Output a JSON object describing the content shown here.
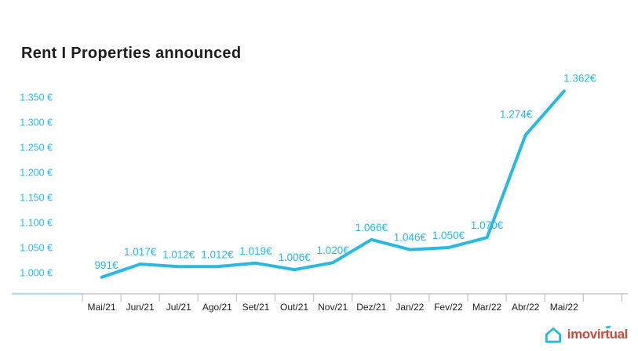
{
  "page": {
    "title": "Rent I Properties announced",
    "background": "#ffffff"
  },
  "chart_data": {
    "type": "line",
    "title": "Rent I Properties announced",
    "categories": [
      "Mai/21",
      "Jun/21",
      "Jul/21",
      "Ago/21",
      "Set/21",
      "Out/21",
      "Nov/21",
      "Dez/21",
      "Jan/22",
      "Fev/22",
      "Mar/22",
      "Abr/22",
      "Mai/22"
    ],
    "values": [
      991,
      1017,
      1012,
      1012,
      1019,
      1006,
      1020,
      1066,
      1046,
      1050,
      1070,
      1274,
      1362
    ],
    "point_labels": [
      "991€",
      "1.017€",
      "1.012€",
      "1.012€",
      "1.019€",
      "1.006€",
      "1.020€",
      "1.066€",
      "1.046€",
      "1.050€",
      "1.070€",
      "1.274€",
      "1.362€"
    ],
    "y_ticks": [
      1000,
      1050,
      1100,
      1150,
      1200,
      1250,
      1300,
      1350
    ],
    "y_tick_labels": [
      "1.000 €",
      "1.050 €",
      "1.100 €",
      "1.150 €",
      "1.200 €",
      "1.250 €",
      "1.300 €",
      "1.350 €"
    ],
    "ylim": [
      960,
      1400
    ],
    "xlabel": "",
    "ylabel": "",
    "grid": false,
    "legend": "none",
    "line_color": "#29b8e3",
    "label_color": "#29b8e3",
    "axis_color": "#c6c6c6",
    "axis_accent_color": "#a9ddf1",
    "x_label_color": "#1d1d1b"
  },
  "footer": {
    "logo_text": "imovirtual",
    "logo_text_color": "#c94a3e",
    "logo_house_color": "#29b8e3",
    "accent_color": "#29b8e3"
  }
}
